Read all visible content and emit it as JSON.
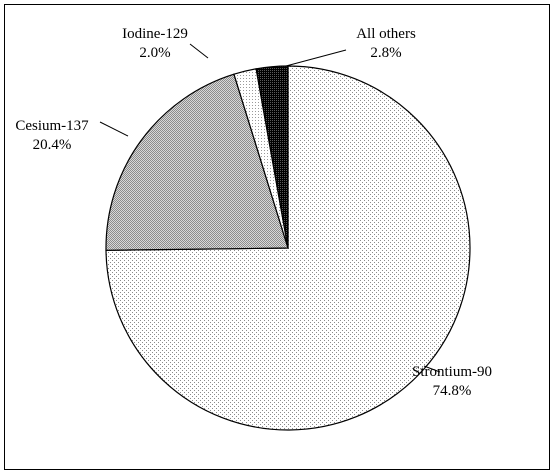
{
  "chart_data": {
    "type": "pie",
    "title": "",
    "slices": [
      {
        "label": "Strontium-90",
        "value": 74.8,
        "value_label": "74.8%",
        "color": "#e8e8e8",
        "pattern": "dots-light"
      },
      {
        "label": "Cesium-137",
        "value": 20.4,
        "value_label": "20.4%",
        "color": "#b4b4b4",
        "pattern": "dots-medium"
      },
      {
        "label": "Iodine-129",
        "value": 2.0,
        "value_label": "2.0%",
        "color": "#f0f0f0",
        "pattern": "dots-fine"
      },
      {
        "label": "All others",
        "value": 2.8,
        "value_label": "2.8%",
        "color": "#1a1a1a",
        "pattern": "dots-dark"
      }
    ],
    "start_slice": "Strontium-90",
    "direction": "clockwise-from-top",
    "legend": "none"
  }
}
